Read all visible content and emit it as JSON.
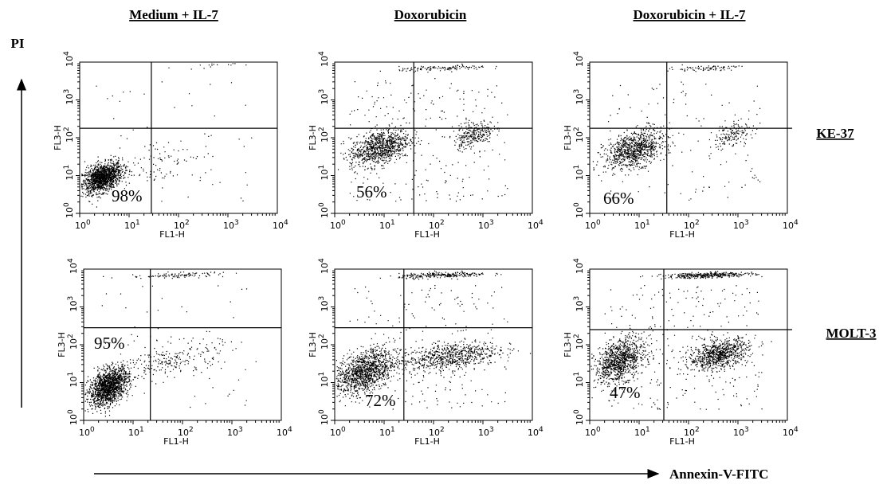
{
  "column_titles": [
    "Medium + IL-7",
    "Doxorubicin",
    "Doxorubicin + IL-7"
  ],
  "row_labels": [
    "KE-37",
    "MOLT-3"
  ],
  "y_axis_label": "PI",
  "x_axis_label": "Annexin-V-FITC",
  "panel_x_label": "FL1-H",
  "panel_y_label": "FL3-H",
  "ticks": [
    {
      "base": "10",
      "exp": "0"
    },
    {
      "base": "10",
      "exp": "1"
    },
    {
      "base": "10",
      "exp": "2"
    },
    {
      "base": "10",
      "exp": "3"
    },
    {
      "base": "10",
      "exp": "4"
    }
  ],
  "panels": [
    {
      "percent": "98%"
    },
    {
      "percent": "56%"
    },
    {
      "percent": "66%"
    },
    {
      "percent": "95%"
    },
    {
      "percent": "72%"
    },
    {
      "percent": "47%"
    }
  ]
}
